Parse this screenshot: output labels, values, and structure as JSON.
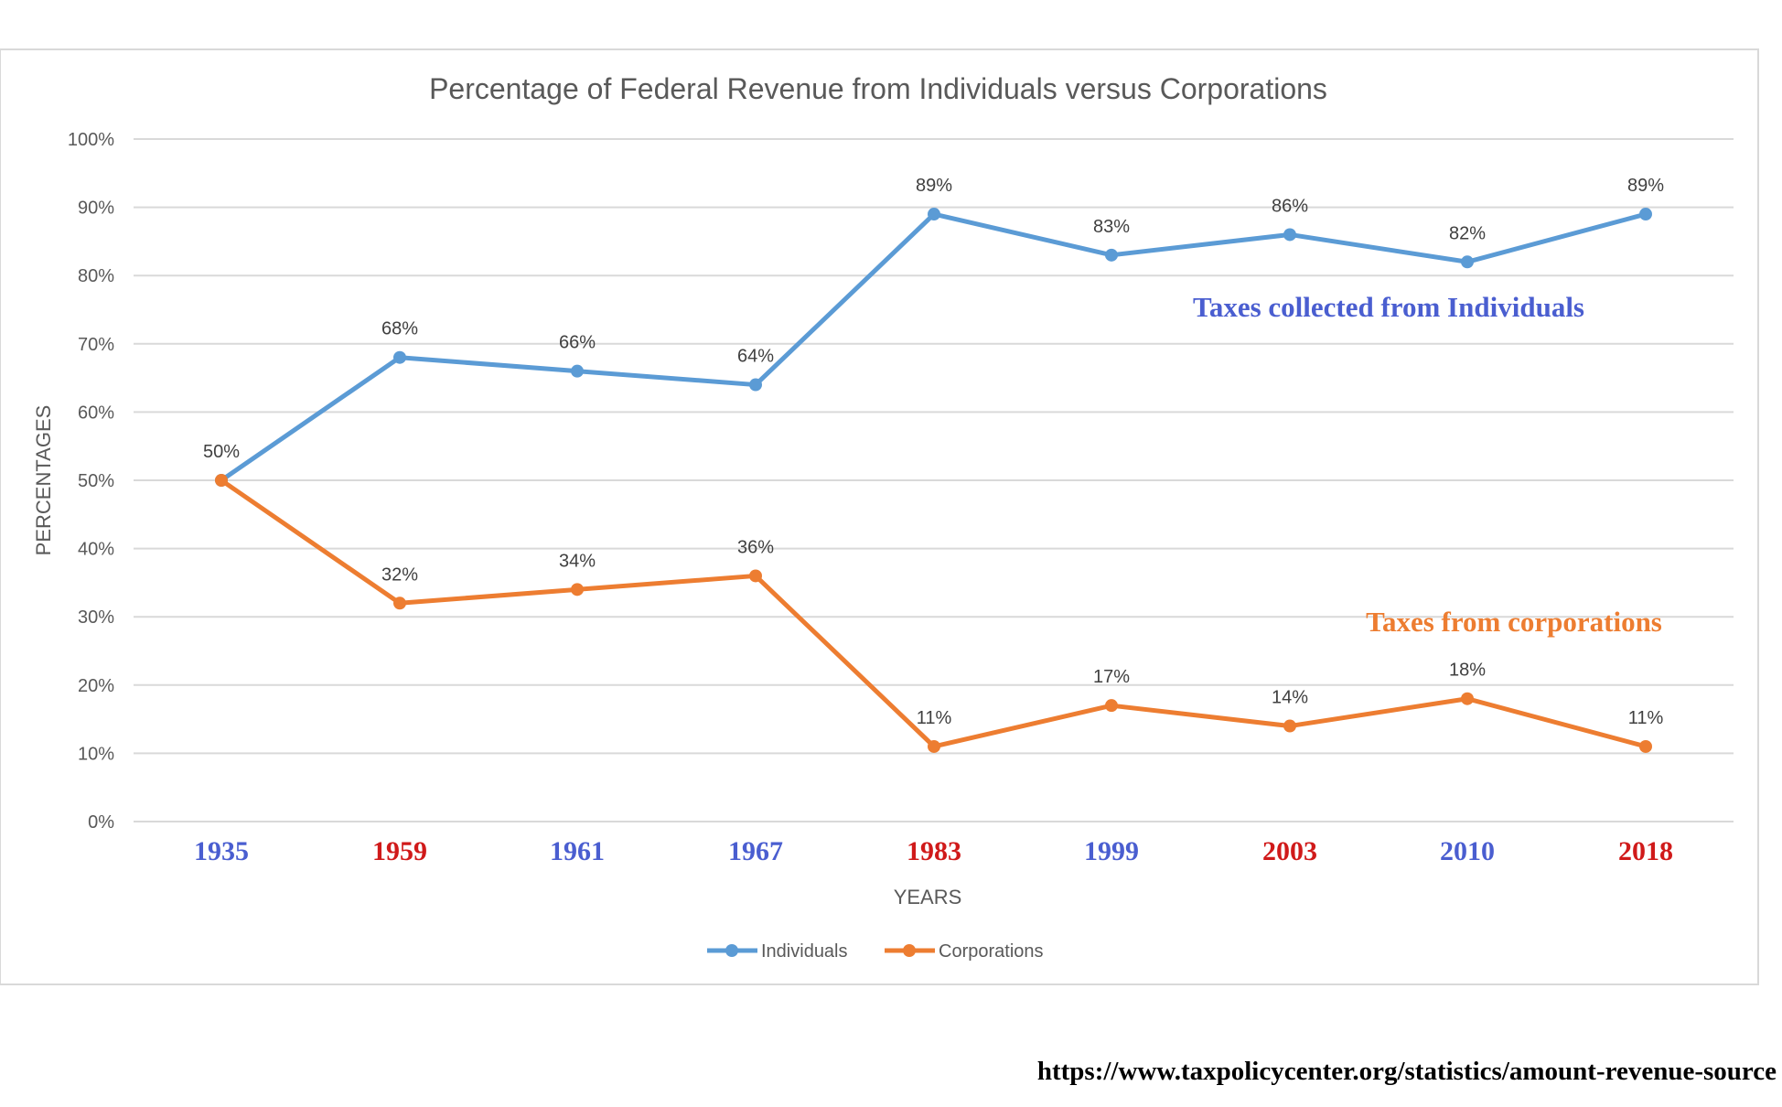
{
  "chart_data": {
    "type": "line",
    "title": "Percentage of Federal Revenue from Individuals versus Corporations",
    "xlabel": "YEARS",
    "ylabel": "PERCENTAGES",
    "categories": [
      "1935",
      "1959",
      "1961",
      "1967",
      "1983",
      "1999",
      "2003",
      "2010",
      "2018"
    ],
    "category_colors": [
      "#4a5ed0",
      "#d01a1a",
      "#4a5ed0",
      "#4a5ed0",
      "#d01a1a",
      "#4a5ed0",
      "#d01a1a",
      "#4a5ed0",
      "#d01a1a"
    ],
    "ylim": [
      0,
      100
    ],
    "yticks": [
      "0%",
      "10%",
      "20%",
      "30%",
      "40%",
      "50%",
      "60%",
      "70%",
      "80%",
      "90%",
      "100%"
    ],
    "grid": true,
    "legend_position": "bottom",
    "series": [
      {
        "name": "Individuals",
        "color": "#5b9bd5",
        "values": [
          50,
          68,
          66,
          64,
          89,
          83,
          86,
          82,
          89
        ],
        "labels": [
          "50%",
          "68%",
          "66%",
          "64%",
          "89%",
          "83%",
          "86%",
          "82%",
          "89%"
        ]
      },
      {
        "name": "Corporations",
        "color": "#ed7d31",
        "values": [
          50,
          32,
          34,
          36,
          11,
          17,
          14,
          18,
          11
        ],
        "labels": [
          "",
          "32%",
          "34%",
          "36%",
          "11%",
          "17%",
          "14%",
          "18%",
          "11%"
        ]
      }
    ],
    "annotations": [
      {
        "text": "Taxes collected from Individuals",
        "color": "#4a5ed0"
      },
      {
        "text": "Taxes from corporations",
        "color": "#ed7d31"
      }
    ]
  },
  "source": "https://www.taxpolicycenter.org/statistics/amount-revenue-source"
}
